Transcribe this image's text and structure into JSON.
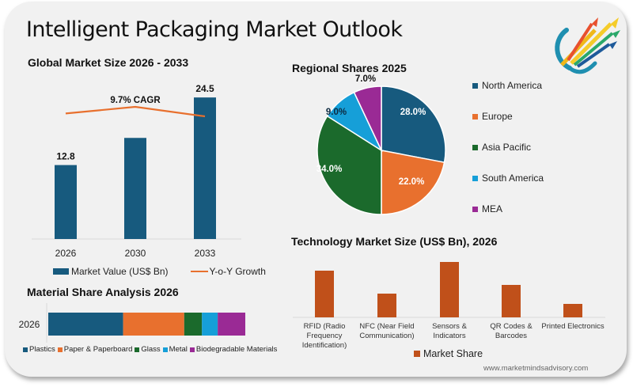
{
  "page": {
    "title": "Intelligent Packaging Market Outlook",
    "footer": "www.marketmindsadvisory.com",
    "logo_icon": "rising-arrows-logo-icon"
  },
  "chart_data": [
    {
      "id": "global_market",
      "type": "bar",
      "title": "Global Market Size 2026 - 2033",
      "categories": [
        "2026",
        "2030",
        "2033"
      ],
      "series": [
        {
          "name": "Market Value (US$ Bn)",
          "type": "bar",
          "color": "#175a7e",
          "values": [
            12.8,
            17.5,
            24.5
          ],
          "labels": [
            "12.8",
            "",
            "24.5"
          ]
        },
        {
          "name": "Y-o-Y Growth",
          "type": "line",
          "color": "#e8702e",
          "values": [
            9.2,
            9.9,
            8.9
          ]
        }
      ],
      "annotation": "9.7% CAGR",
      "legend": "bottom"
    },
    {
      "id": "regional_shares",
      "type": "pie",
      "title": "Regional Shares 2025",
      "slices": [
        {
          "label": "North America",
          "value": 28.0,
          "text": "28.0%",
          "color": "#175a7e"
        },
        {
          "label": "Europe",
          "value": 22.0,
          "text": "22.0%",
          "color": "#e8702e"
        },
        {
          "label": "Asia Pacific",
          "value": 34.0,
          "text": "34.0%",
          "color": "#1b6a2c"
        },
        {
          "label": "South America",
          "value": 9.0,
          "text": "9.0%",
          "color": "#169fd8"
        },
        {
          "label": "MEA",
          "value": 7.0,
          "text": "7.0%",
          "color": "#9a2a95"
        }
      ],
      "legend": "right"
    },
    {
      "id": "material_share",
      "type": "bar",
      "orientation": "horizontal-stacked",
      "title": "Material Share Analysis 2026",
      "categories": [
        "2026"
      ],
      "series": [
        {
          "name": "Plastics",
          "color": "#175a7e",
          "values": [
            38
          ]
        },
        {
          "name": "Paper & Paperboard",
          "color": "#e8702e",
          "values": [
            31
          ]
        },
        {
          "name": "Glass",
          "color": "#1b6a2c",
          "values": [
            9
          ]
        },
        {
          "name": "Metal",
          "color": "#169fd8",
          "values": [
            8
          ]
        },
        {
          "name": "Biodegradable Materials",
          "color": "#9a2a95",
          "values": [
            14
          ]
        }
      ],
      "legend": "bottom"
    },
    {
      "id": "technology_market",
      "type": "bar",
      "title": "Technology Market Size (US$ Bn), 2026",
      "categories": [
        "RFID (Radio Frequency Identification)",
        "NFC (Near Field Communication)",
        "Sensors & Indicators",
        "QR Codes & Barcodes",
        "Printed Electronics"
      ],
      "category_lines": [
        [
          "RFID (Radio",
          "Frequency",
          "Identification)"
        ],
        [
          "NFC (Near Field",
          "Communication)"
        ],
        [
          "Sensors &",
          "Indicators"
        ],
        [
          "QR Codes &",
          "Barcodes"
        ],
        [
          "Printed Electronics"
        ]
      ],
      "series": [
        {
          "name": "Market Share",
          "color": "#c0501a",
          "values": [
            5.9,
            3.0,
            7.0,
            4.1,
            1.7
          ]
        }
      ],
      "legend": "bottom"
    }
  ]
}
